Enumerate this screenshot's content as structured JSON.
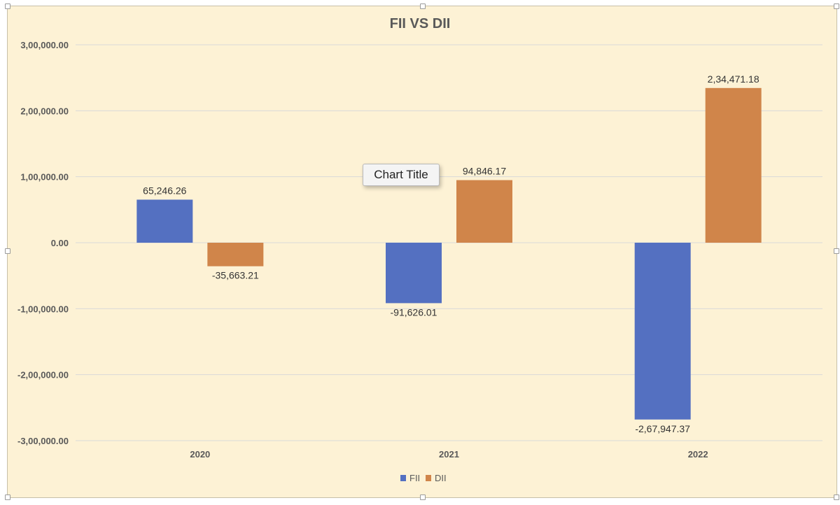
{
  "tooltip": {
    "text": "Chart Title"
  },
  "colors": {
    "fii": "#5470c1",
    "dii": "#d0854a",
    "grid": "#d9d9d9",
    "axis_text": "#595959",
    "title": "#595959",
    "plot_bg": "#fdf2d5"
  },
  "chart_data": {
    "type": "bar",
    "title": "FII VS DII",
    "categories": [
      "2020",
      "2021",
      "2022"
    ],
    "series": [
      {
        "name": "FII",
        "color": "#5470c1",
        "values": [
          65246.26,
          -91626.01,
          -267947.37
        ],
        "labels": [
          "65,246.26",
          "-91,626.01",
          "-2,67,947.37"
        ]
      },
      {
        "name": "DII",
        "color": "#d0854a",
        "values": [
          -35663.21,
          94846.17,
          234471.18
        ],
        "labels": [
          "-35,663.21",
          "94,846.17",
          "2,34,471.18"
        ]
      }
    ],
    "ylim": [
      -300000,
      300000
    ],
    "yticks": [
      {
        "value": 300000,
        "label": "3,00,000.00"
      },
      {
        "value": 200000,
        "label": "2,00,000.00"
      },
      {
        "value": 100000,
        "label": "1,00,000.00"
      },
      {
        "value": 0,
        "label": "0.00"
      },
      {
        "value": -100000,
        "label": "-1,00,000.00"
      },
      {
        "value": -200000,
        "label": "-2,00,000.00"
      },
      {
        "value": -300000,
        "label": "-3,00,000.00"
      }
    ],
    "xlabel": "",
    "ylabel": "",
    "grid": true,
    "legend": "bottom"
  }
}
